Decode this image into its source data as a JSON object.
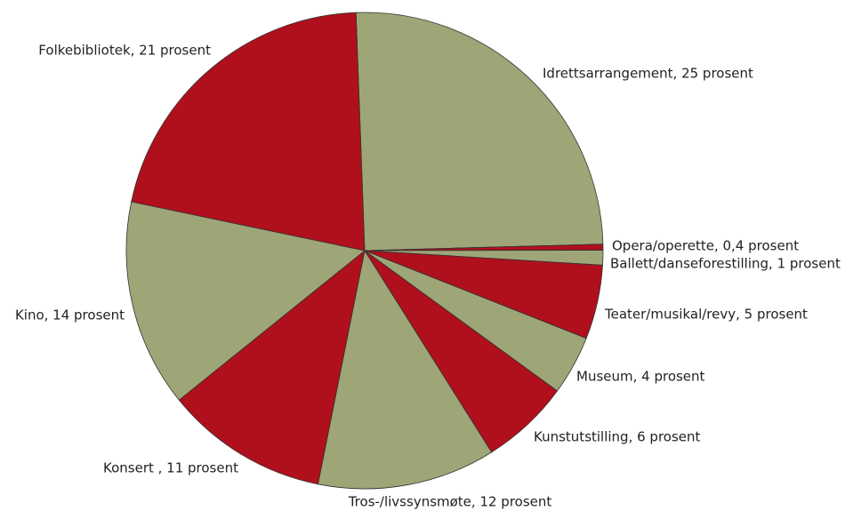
{
  "chart_data": {
    "type": "pie",
    "categories": [
      "Idrettsarrangement, 25 prosent",
      "Opera/operette, 0,4 prosent",
      "Ballett/danseforestilling, 1 prosent",
      "Teater/musikal/revy, 5 prosent",
      "Museum, 4 prosent",
      "Kunstutstilling, 6 prosent",
      "Tros-/livssynsmøte, 12 prosent",
      "Konsert , 11 prosent",
      "Kino, 14 prosent",
      "Folkebibliotek, 21 prosent"
    ],
    "values": [
      25,
      0.4,
      1,
      5,
      4,
      6,
      12,
      11,
      14,
      21
    ],
    "colors": [
      "#9ea677",
      "#b00f1c",
      "#9ea677",
      "#b00f1c",
      "#9ea677",
      "#b00f1c",
      "#9ea677",
      "#b00f1c",
      "#9ea677",
      "#b00f1c"
    ]
  }
}
